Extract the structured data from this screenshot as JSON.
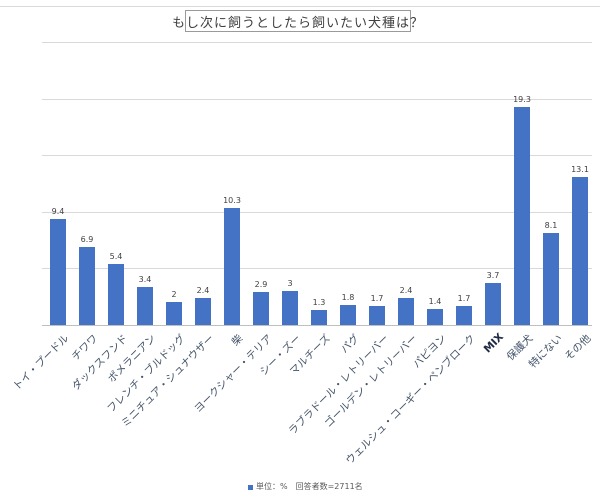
{
  "chart_data": {
    "type": "bar",
    "title": "もし次に飼うとしたら飼いたい犬種は？",
    "xlabel": "",
    "ylabel": "",
    "ylim": [
      0,
      25
    ],
    "grid": true,
    "gridlines": [
      0,
      5,
      10,
      15,
      20,
      25
    ],
    "categories": [
      "トイ・プードル",
      "チワワ",
      "ダックスフンド",
      "ポメラニアン",
      "フレンチ・ブルドッグ",
      "ミニチュア・シュナウザー",
      "柴",
      "ヨークシャー・テリア",
      "シー・ズー",
      "マルチーズ",
      "パグ",
      "ラブラドール・レトリーバー",
      "ゴールデン・レトリーバー",
      "パピヨン",
      "ウェルシュ・コーギー・ペンブローク",
      "MIX",
      "保護犬",
      "特にない",
      "その他"
    ],
    "values": [
      9.4,
      6.9,
      5.4,
      3.4,
      2,
      2.4,
      10.3,
      2.9,
      3,
      1.3,
      1.8,
      1.7,
      2.4,
      1.4,
      1.7,
      3.7,
      19.3,
      8.1,
      13.1
    ],
    "value_labels": [
      "9.4",
      "6.9",
      "5.4",
      "3.4",
      "2",
      "2.4",
      "10.3",
      "2.9",
      "3",
      "1.3",
      "1.8",
      "1.7",
      "2.4",
      "1.4",
      "1.7",
      "3.7",
      "19.3",
      "8.1",
      "13.1"
    ],
    "series": [
      {
        "name": "単位：%",
        "color": "#4472c4"
      }
    ],
    "legend": {
      "label": "単位：%　回答者数=2711名",
      "position": "bottom"
    },
    "bar_color": "#4472c4"
  },
  "title": "もし次に飼うとしたら飼いたい犬種は？",
  "legend_text": "単位：%　回答者数=2711名"
}
